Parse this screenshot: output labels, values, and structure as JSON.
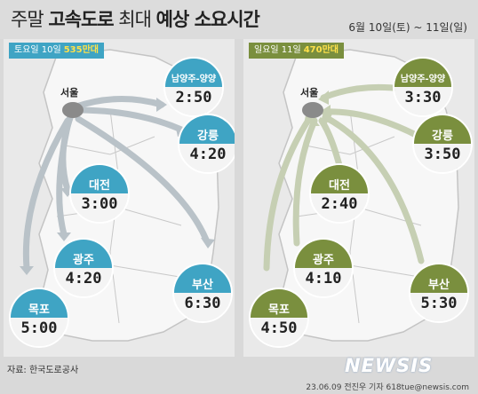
{
  "title_prefix": "주말",
  "title_bold": "고속도로",
  "title_mid": "최대",
  "title_bold2": "예상 소요시간",
  "date_range": "6월 10일(토) ~ 11일(일)",
  "saturday": {
    "tag_label": "토요일 10일",
    "tag_count": "535만대",
    "origin": "서울",
    "routes": [
      {
        "city": "남양주-양양",
        "time": "2:50"
      },
      {
        "city": "강릉",
        "time": "4:20"
      },
      {
        "city": "대전",
        "time": "3:00"
      },
      {
        "city": "광주",
        "time": "4:20"
      },
      {
        "city": "목포",
        "time": "5:00"
      },
      {
        "city": "부산",
        "time": "6:30"
      }
    ]
  },
  "sunday": {
    "tag_label": "일요일 11일",
    "tag_count": "470만대",
    "destination": "서울",
    "routes": [
      {
        "city": "남양주-양양",
        "time": "3:30"
      },
      {
        "city": "강릉",
        "time": "3:50"
      },
      {
        "city": "대전",
        "time": "2:40"
      },
      {
        "city": "광주",
        "time": "4:10"
      },
      {
        "city": "목포",
        "time": "4:50"
      },
      {
        "city": "부산",
        "time": "5:30"
      }
    ]
  },
  "source": "자료: 한국도로공사",
  "credit": "23.06.09 전진우 기자 618tue@newsis.com",
  "logo": "NEWSIS",
  "colors": {
    "saturday": "#3fa4c4",
    "sunday": "#7a8f3e"
  }
}
